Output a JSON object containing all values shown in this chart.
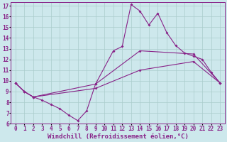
{
  "bg_color": "#cde8ec",
  "line_color": "#882288",
  "grid_color": "#aacccc",
  "xlabel": "Windchill (Refroidissement éolien,°C)",
  "xlabel_fontsize": 6.5,
  "xtick_fontsize": 5.5,
  "ytick_fontsize": 5.5,
  "xlim": [
    -0.5,
    23.5
  ],
  "ylim": [
    6,
    17.3
  ],
  "yticks": [
    6,
    7,
    8,
    9,
    10,
    11,
    12,
    13,
    14,
    15,
    16,
    17
  ],
  "xticks": [
    0,
    1,
    2,
    3,
    4,
    5,
    6,
    7,
    8,
    9,
    10,
    11,
    12,
    13,
    14,
    15,
    16,
    17,
    18,
    19,
    20,
    21,
    22,
    23
  ],
  "line1_x": [
    0,
    1,
    2,
    3,
    4,
    5,
    6,
    7,
    8,
    9,
    11,
    12,
    13,
    14,
    15,
    16,
    17,
    18,
    19,
    20,
    21,
    22,
    23
  ],
  "line1_y": [
    9.8,
    9.0,
    8.5,
    8.2,
    7.8,
    7.4,
    6.8,
    6.3,
    7.2,
    9.7,
    12.8,
    13.2,
    17.1,
    16.5,
    15.2,
    16.3,
    14.5,
    13.3,
    12.6,
    12.3,
    12.0,
    10.8,
    9.8
  ],
  "line2_x": [
    0,
    1,
    2,
    9,
    14,
    20,
    23
  ],
  "line2_y": [
    9.8,
    9.0,
    8.5,
    9.7,
    12.8,
    12.5,
    9.8
  ],
  "line3_x": [
    0,
    1,
    2,
    9,
    14,
    20,
    23
  ],
  "line3_y": [
    9.8,
    9.0,
    8.5,
    9.3,
    11.0,
    11.8,
    9.8
  ]
}
